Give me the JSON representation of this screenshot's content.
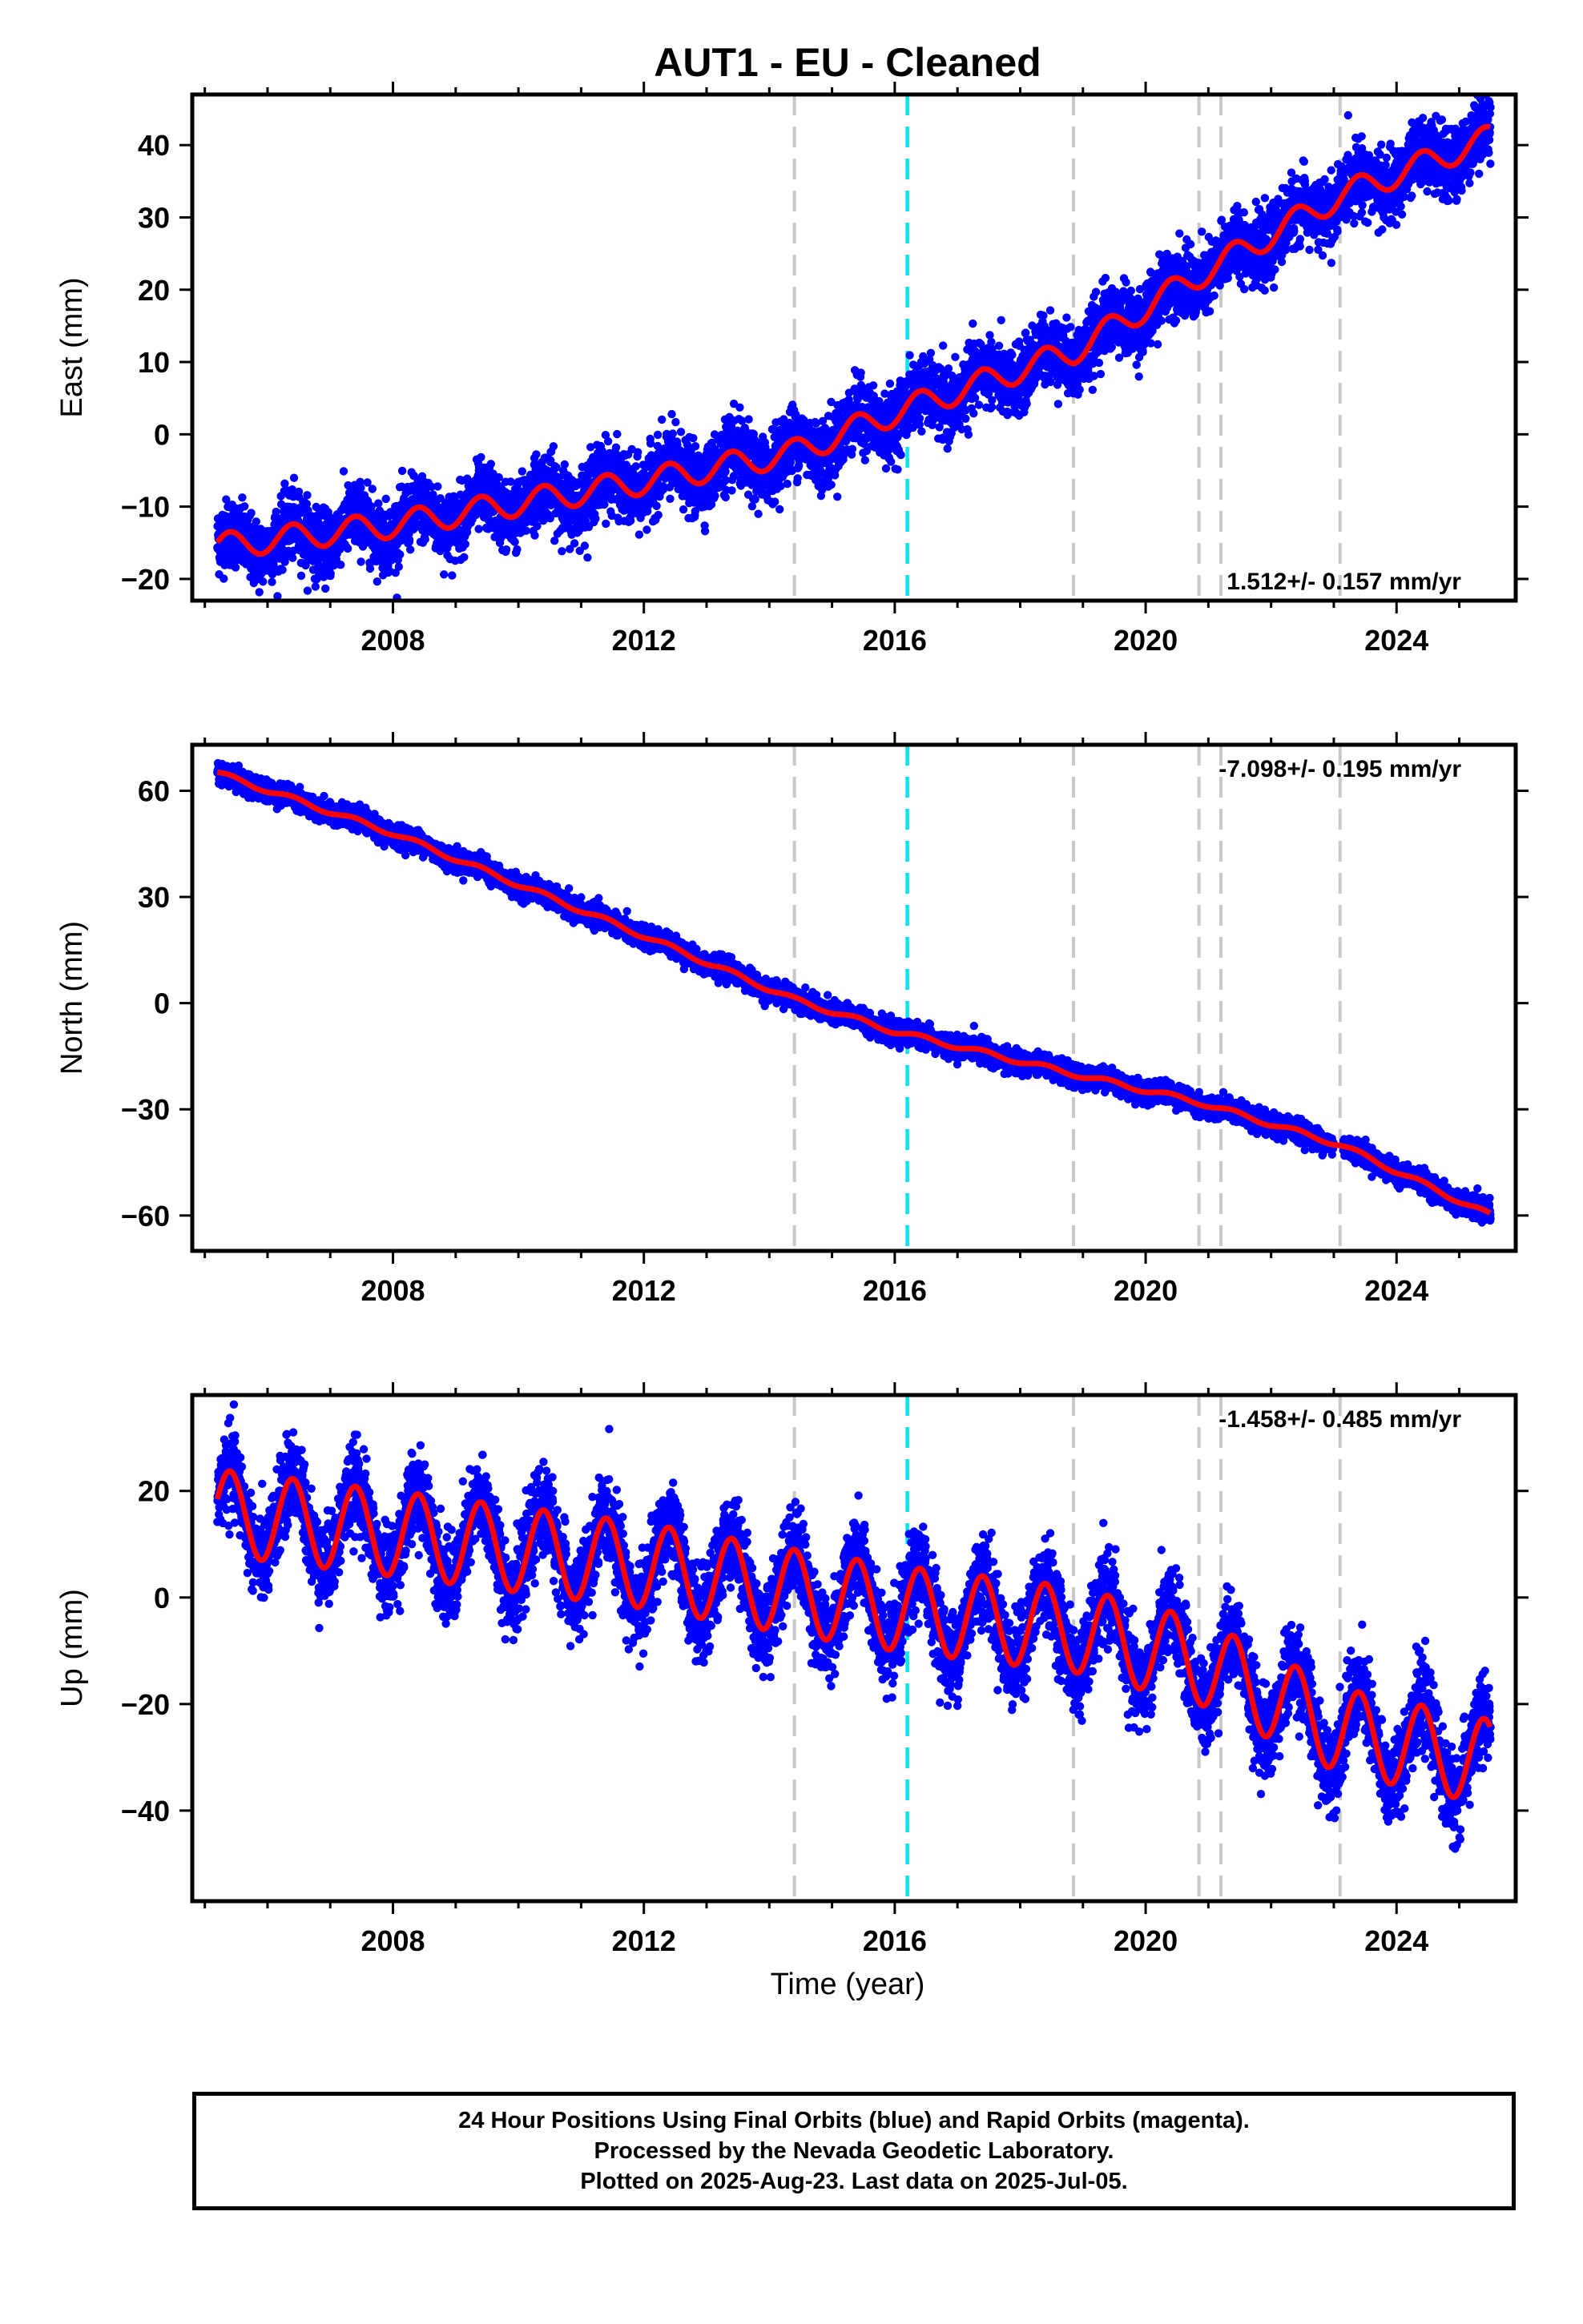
{
  "title": "AUT1  - EU - Cleaned",
  "xlabel": "Time (year)",
  "footnote": {
    "line1": "24 Hour Positions Using Final Orbits (blue) and Rapid Orbits (magenta).",
    "line2": "Processed by the Nevada Geodetic Laboratory.",
    "line3": "Plotted on 2025-Aug-23. Last data on 2025-Jul-05."
  },
  "chart_data": {
    "type": "scatter",
    "xlim": [
      2004.8,
      2025.9
    ],
    "x_ticks": [
      2008,
      2012,
      2016,
      2020,
      2024
    ],
    "colors": {
      "data": "#0000ff",
      "model": "#ff0000",
      "equipment_change": "#c8c8c8",
      "earthquake": "#00e5ee"
    },
    "grey_event_lines": [
      2014.4,
      2018.85,
      2020.85,
      2021.2,
      2023.1
    ],
    "cyan_event_lines": [
      2016.2
    ],
    "panels": [
      {
        "name": "east",
        "ylabel": "East (mm)",
        "rate_label": "1.512+/- 0.157 mm/yr",
        "ylim": [
          -23,
          47
        ],
        "y_ticks": [
          -20,
          -10,
          0,
          10,
          20,
          30,
          40
        ],
        "model_trend": [
          [
            2005.2,
            -15.5
          ],
          [
            2008,
            -12.5
          ],
          [
            2012,
            -6.5
          ],
          [
            2014.4,
            -2.5
          ],
          [
            2016,
            3.0
          ],
          [
            2018.85,
            11.5
          ],
          [
            2020.85,
            22.0
          ],
          [
            2023.1,
            33.0
          ],
          [
            2025.5,
            41.0
          ]
        ],
        "seasonal_amplitude": 1.8,
        "scatter_noise": 2.3
      },
      {
        "name": "north",
        "ylabel": "North (mm)",
        "rate_label": "-7.098+/- 0.195 mm/yr",
        "ylim": [
          -70,
          73
        ],
        "y_ticks": [
          -60,
          -30,
          0,
          30,
          60
        ],
        "model_trend": [
          [
            2005.2,
            65.0
          ],
          [
            2008,
            48.0
          ],
          [
            2012,
            19.0
          ],
          [
            2014.4,
            1.0
          ],
          [
            2016,
            -8.0
          ],
          [
            2018.85,
            -20.0
          ],
          [
            2020.85,
            -28.0
          ],
          [
            2023.1,
            -40.0
          ],
          [
            2025.5,
            -60.0
          ]
        ],
        "seasonal_amplitude": 0.7,
        "scatter_noise": 1.5
      },
      {
        "name": "up",
        "ylabel": "Up (mm)",
        "rate_label": "-1.458+/- 0.485 mm/yr",
        "ylim": [
          -57,
          38
        ],
        "y_ticks": [
          -40,
          -20,
          0,
          20
        ],
        "model_trend": [
          [
            2005.2,
            16.0
          ],
          [
            2008,
            12.0
          ],
          [
            2012,
            6.0
          ],
          [
            2014.4,
            1.0
          ],
          [
            2016,
            -2.0
          ],
          [
            2018.85,
            -6.0
          ],
          [
            2020.85,
            -12.0
          ],
          [
            2023.1,
            -25.0
          ],
          [
            2025.5,
            -31.0
          ]
        ],
        "seasonal_amplitude": 8.0,
        "scatter_noise": 4.0
      }
    ]
  }
}
